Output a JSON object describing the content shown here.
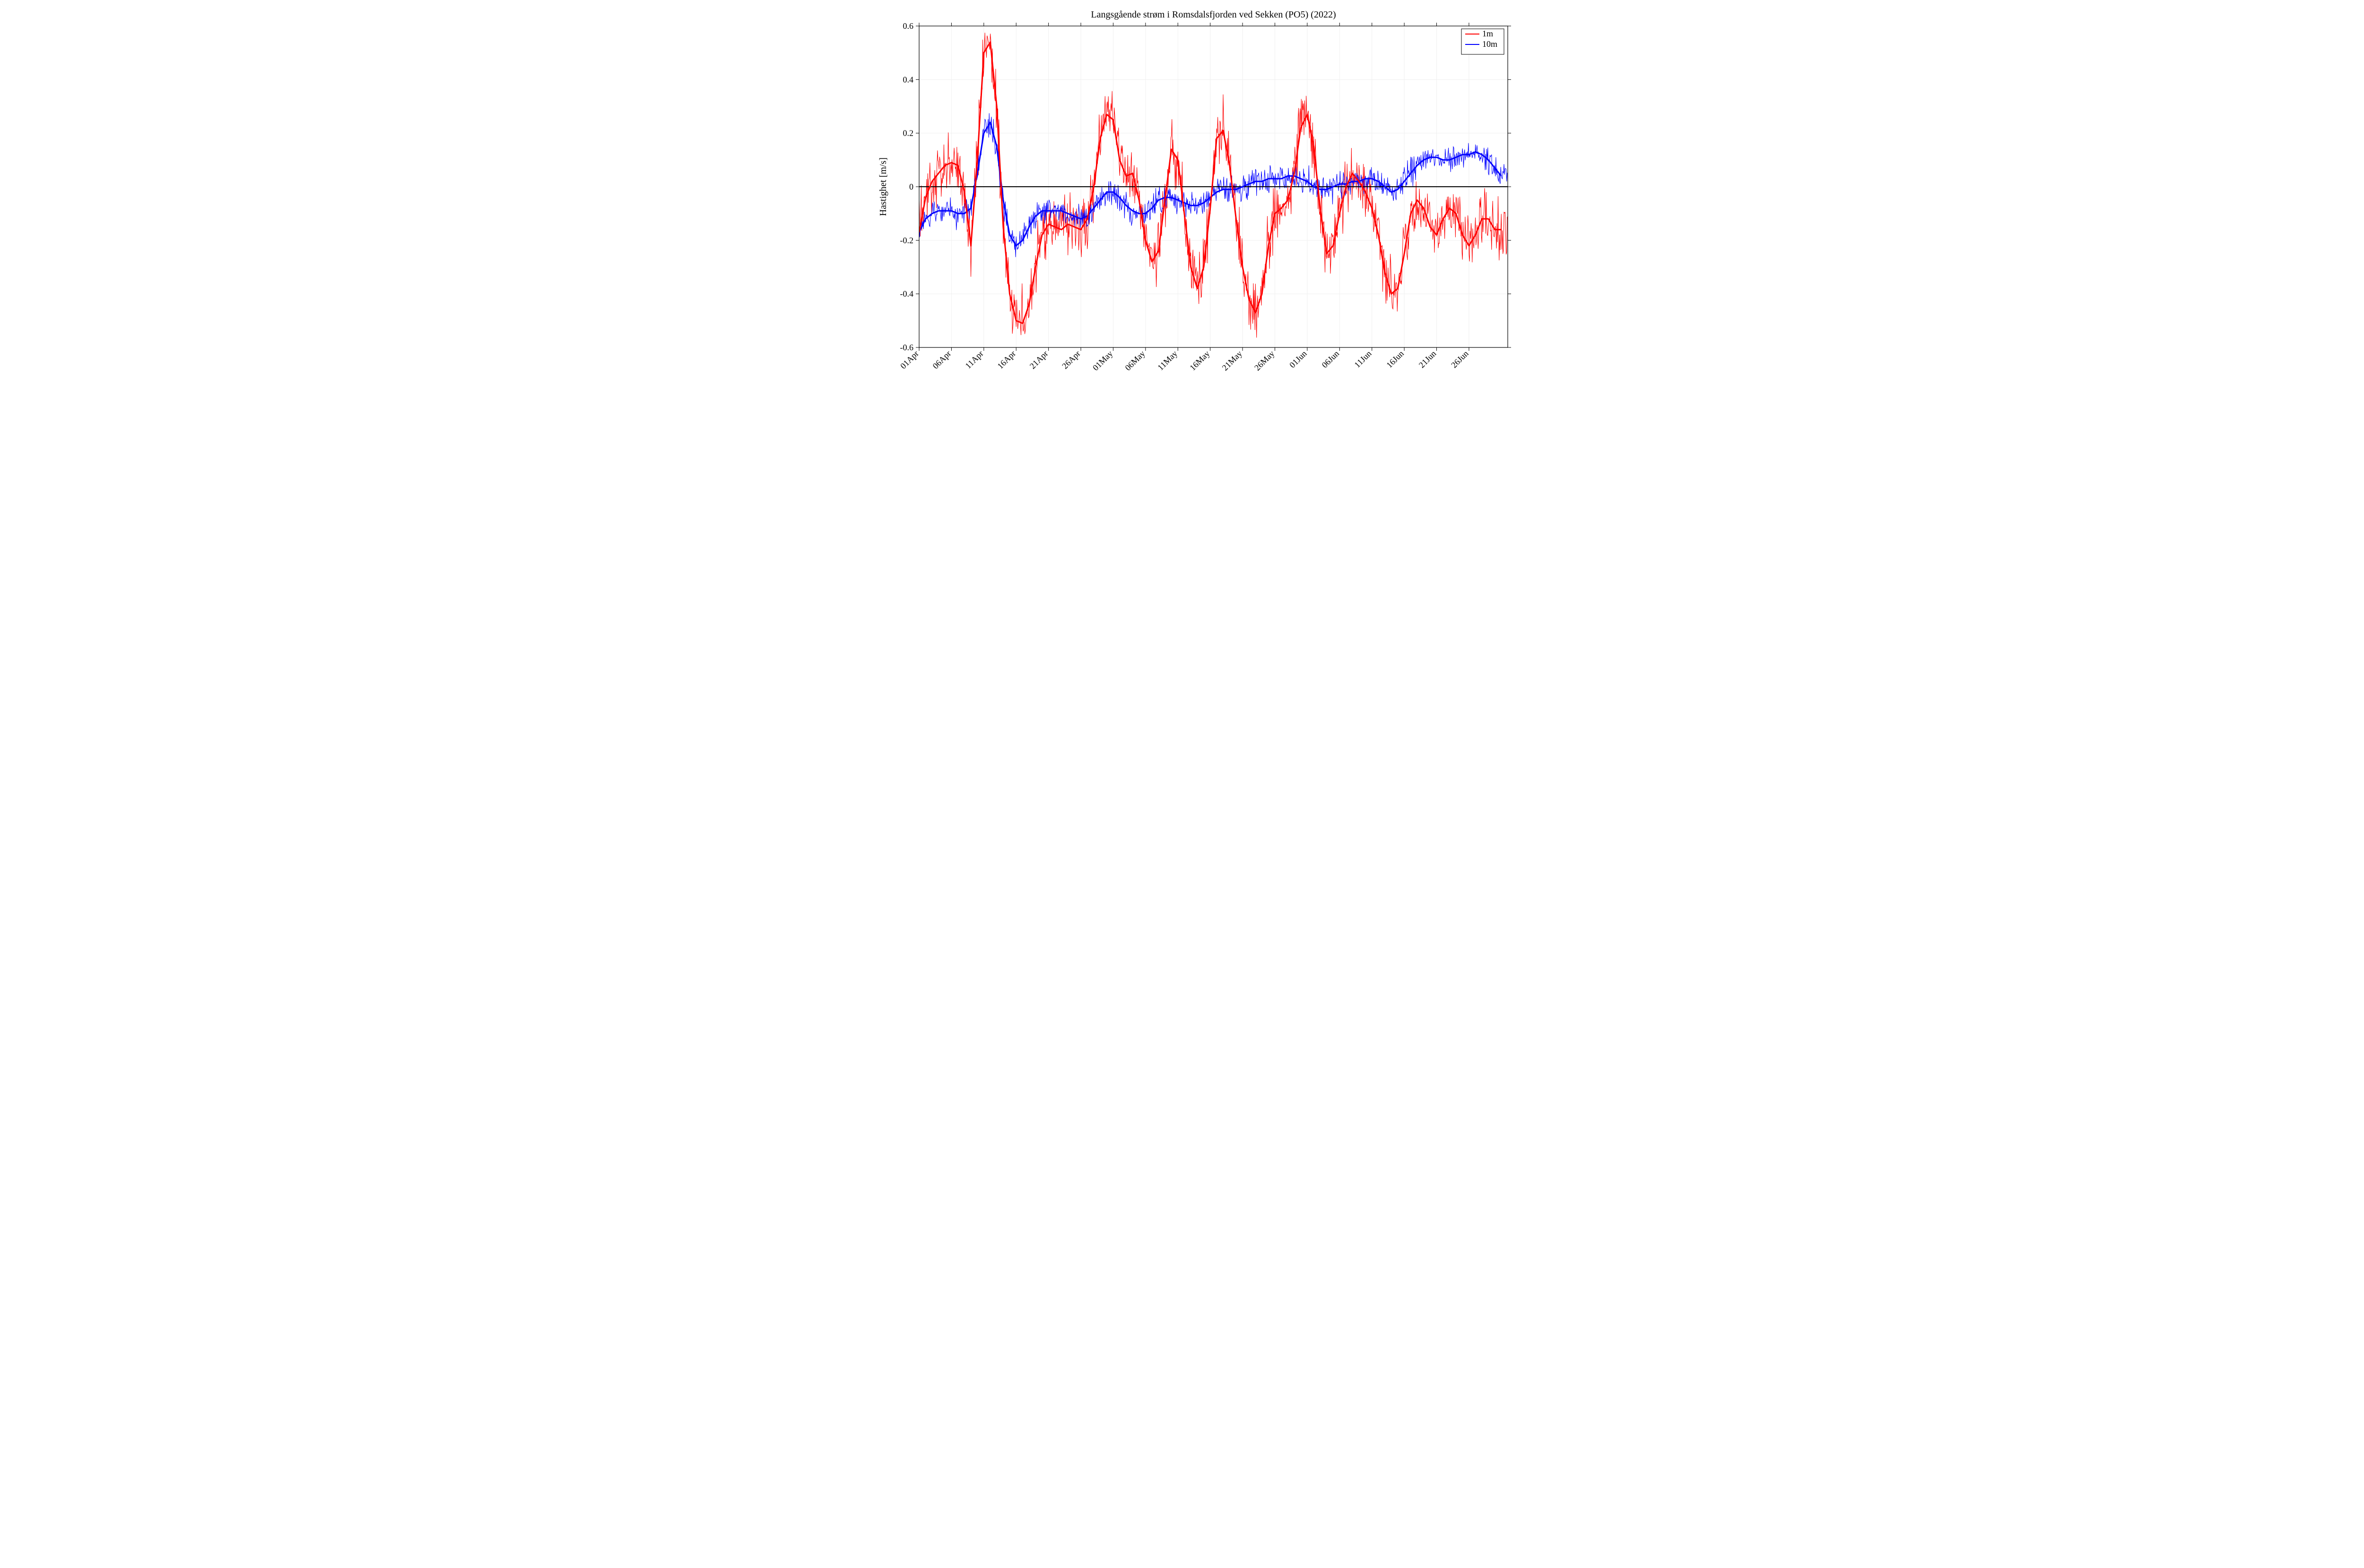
{
  "chart": {
    "type": "line",
    "title": "Langsgående strøm i Romsdalsfjorden ved Sekken (PO5) (2022)",
    "title_fontsize": 20,
    "ylabel": "Hastighet [m/s]",
    "label_fontsize": 20,
    "tick_fontsize": 18,
    "background_color": "#ffffff",
    "plot_bgcolor": "#ffffff",
    "grid_color": "#f0f0f0",
    "axis_color": "#000000",
    "zero_line_color": "#000000",
    "zero_line_width": 2,
    "series_colors": {
      "1m": "#ff0000",
      "10m": "#0000ff"
    },
    "thin_line_width": 1,
    "thick_line_width": 3,
    "xlim_days": [
      0,
      91
    ],
    "ylim": [
      -0.6,
      0.6
    ],
    "ytick_step": 0.2,
    "x_tick_labels": [
      "01Apr",
      "06Apr",
      "11Apr",
      "16Apr",
      "21Apr",
      "26Apr",
      "01May",
      "06May",
      "11May",
      "16May",
      "21May",
      "26May",
      "01Jun",
      "06Jun",
      "11Jun",
      "16Jun",
      "21Jun",
      "26Jun"
    ],
    "x_tick_days": [
      0,
      5,
      10,
      15,
      20,
      25,
      30,
      35,
      40,
      45,
      50,
      55,
      60,
      65,
      70,
      75,
      80,
      85
    ],
    "x_tick_rotation_deg": 45,
    "legend": {
      "position": "top-right",
      "items": [
        {
          "label": "1m",
          "color": "#ff0000"
        },
        {
          "label": "10m",
          "color": "#0000ff"
        }
      ],
      "fontsize": 18,
      "border_color": "#000000",
      "bgcolor": "#ffffff"
    },
    "smooth_1m_days": [
      0,
      1,
      2,
      3,
      4,
      5,
      6,
      7,
      8,
      9,
      10,
      11,
      12,
      13,
      14,
      15,
      16,
      17,
      18,
      19,
      20,
      21,
      22,
      23,
      24,
      25,
      26,
      27,
      28,
      29,
      30,
      31,
      32,
      33,
      34,
      35,
      36,
      37,
      38,
      39,
      40,
      41,
      42,
      43,
      44,
      45,
      46,
      47,
      48,
      49,
      50,
      51,
      52,
      53,
      54,
      55,
      56,
      57,
      58,
      59,
      60,
      61,
      62,
      63,
      64,
      65,
      66,
      67,
      68,
      69,
      70,
      71,
      72,
      73,
      74,
      75,
      76,
      77,
      78,
      79,
      80,
      81,
      82,
      83,
      84,
      85,
      86,
      87,
      88,
      89,
      90
    ],
    "smooth_1m_vals": [
      -0.17,
      -0.04,
      0.02,
      0.05,
      0.08,
      0.09,
      0.08,
      -0.02,
      -0.22,
      0.1,
      0.5,
      0.54,
      0.3,
      -0.15,
      -0.4,
      -0.5,
      -0.51,
      -0.44,
      -0.3,
      -0.18,
      -0.14,
      -0.15,
      -0.16,
      -0.14,
      -0.15,
      -0.16,
      -0.12,
      0.0,
      0.18,
      0.27,
      0.25,
      0.1,
      0.04,
      0.05,
      -0.05,
      -0.2,
      -0.28,
      -0.24,
      -0.05,
      0.14,
      0.1,
      -0.1,
      -0.3,
      -0.38,
      -0.3,
      -0.08,
      0.18,
      0.21,
      0.08,
      -0.12,
      -0.3,
      -0.42,
      -0.47,
      -0.4,
      -0.22,
      -0.1,
      -0.08,
      -0.05,
      0.05,
      0.22,
      0.27,
      0.15,
      -0.08,
      -0.25,
      -0.22,
      -0.1,
      0.0,
      0.05,
      0.02,
      -0.02,
      -0.08,
      -0.18,
      -0.32,
      -0.4,
      -0.38,
      -0.25,
      -0.1,
      -0.05,
      -0.08,
      -0.15,
      -0.18,
      -0.12,
      -0.08,
      -0.1,
      -0.18,
      -0.22,
      -0.18,
      -0.12,
      -0.12,
      -0.16,
      -0.16
    ],
    "smooth_10m_days": [
      0,
      1,
      2,
      3,
      4,
      5,
      6,
      7,
      8,
      9,
      10,
      11,
      12,
      13,
      14,
      15,
      16,
      17,
      18,
      19,
      20,
      21,
      22,
      23,
      24,
      25,
      26,
      27,
      28,
      29,
      30,
      31,
      32,
      33,
      34,
      35,
      36,
      37,
      38,
      39,
      40,
      41,
      42,
      43,
      44,
      45,
      46,
      47,
      48,
      49,
      50,
      51,
      52,
      53,
      54,
      55,
      56,
      57,
      58,
      59,
      60,
      61,
      62,
      63,
      64,
      65,
      66,
      67,
      68,
      69,
      70,
      71,
      72,
      73,
      74,
      75,
      76,
      77,
      78,
      79,
      80,
      81,
      82,
      83,
      84,
      85,
      86,
      87,
      88,
      89,
      90
    ],
    "smooth_10m_vals": [
      -0.17,
      -0.12,
      -0.1,
      -0.09,
      -0.09,
      -0.09,
      -0.1,
      -0.1,
      -0.08,
      0.05,
      0.2,
      0.24,
      0.15,
      -0.05,
      -0.18,
      -0.22,
      -0.2,
      -0.15,
      -0.11,
      -0.09,
      -0.09,
      -0.09,
      -0.09,
      -0.1,
      -0.11,
      -0.12,
      -0.11,
      -0.08,
      -0.05,
      -0.02,
      -0.02,
      -0.04,
      -0.07,
      -0.09,
      -0.1,
      -0.1,
      -0.08,
      -0.05,
      -0.04,
      -0.04,
      -0.05,
      -0.06,
      -0.07,
      -0.07,
      -0.06,
      -0.04,
      -0.02,
      -0.01,
      -0.01,
      -0.01,
      0.0,
      0.01,
      0.02,
      0.02,
      0.03,
      0.03,
      0.03,
      0.04,
      0.04,
      0.03,
      0.02,
      0.0,
      -0.01,
      -0.01,
      0.0,
      0.01,
      0.01,
      0.02,
      0.02,
      0.03,
      0.03,
      0.02,
      0.0,
      -0.02,
      -0.01,
      0.02,
      0.05,
      0.08,
      0.1,
      0.11,
      0.11,
      0.1,
      0.1,
      0.11,
      0.12,
      0.12,
      0.13,
      0.12,
      0.1,
      0.07,
      0.04
    ],
    "raw_noise_amp_1m": 0.16,
    "raw_noise_amp_10m": 0.07,
    "raw_samples_per_day": 12
  }
}
